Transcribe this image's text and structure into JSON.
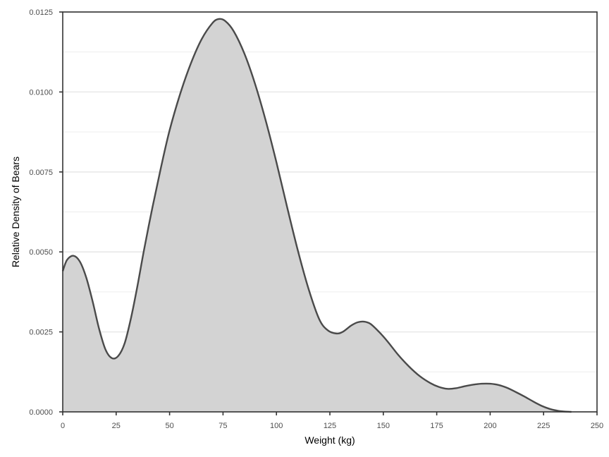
{
  "chart_data": {
    "type": "area",
    "title": "",
    "xlabel": "Weight (kg)",
    "ylabel": "Relative Density of Bears",
    "xlim": [
      0,
      250
    ],
    "ylim": [
      0,
      0.0125
    ],
    "x_ticks": [
      "0",
      "25",
      "50",
      "75",
      "100",
      "125",
      "150",
      "175",
      "200",
      "225",
      "250"
    ],
    "y_ticks": [
      "0.0000",
      "0.0025",
      "0.0050",
      "0.0075",
      "0.0100",
      "0.0125"
    ],
    "grid": true,
    "legend": "none",
    "colors": {
      "fill": "#d3d3d3",
      "line": "#4a4a4a",
      "grid": "#ebebeb",
      "panel_border": "#333333"
    },
    "series": [
      {
        "x": [
          0,
          2,
          5,
          8,
          11,
          14,
          17,
          20,
          23,
          26,
          29,
          32,
          35,
          38,
          42,
          46,
          50,
          55,
          60,
          65,
          70,
          73,
          76,
          80,
          85,
          90,
          95,
          100,
          105,
          110,
          115,
          120,
          124,
          128,
          131,
          135,
          138,
          141,
          144,
          148,
          152,
          157,
          162,
          167,
          172,
          176,
          180,
          184,
          188,
          192,
          196,
          200,
          204,
          208,
          212,
          216,
          220,
          224,
          228,
          232,
          235,
          238
        ],
        "y": [
          0.0044,
          0.00475,
          0.00488,
          0.0047,
          0.0042,
          0.00345,
          0.0026,
          0.00195,
          0.00168,
          0.00175,
          0.00215,
          0.00295,
          0.00395,
          0.00505,
          0.0064,
          0.00765,
          0.0088,
          0.00995,
          0.0109,
          0.01165,
          0.01215,
          0.01228,
          0.01222,
          0.0119,
          0.0112,
          0.01025,
          0.0091,
          0.0078,
          0.0064,
          0.00505,
          0.00385,
          0.0029,
          0.00255,
          0.00245,
          0.0025,
          0.0027,
          0.0028,
          0.00282,
          0.00275,
          0.0025,
          0.0022,
          0.00178,
          0.00142,
          0.00112,
          0.0009,
          0.00078,
          0.00072,
          0.00074,
          0.0008,
          0.00085,
          0.00088,
          0.00088,
          0.00084,
          0.00075,
          0.00062,
          0.00048,
          0.00033,
          0.00019,
          9e-05,
          3e-05,
          1e-05,
          0.0
        ]
      }
    ]
  }
}
